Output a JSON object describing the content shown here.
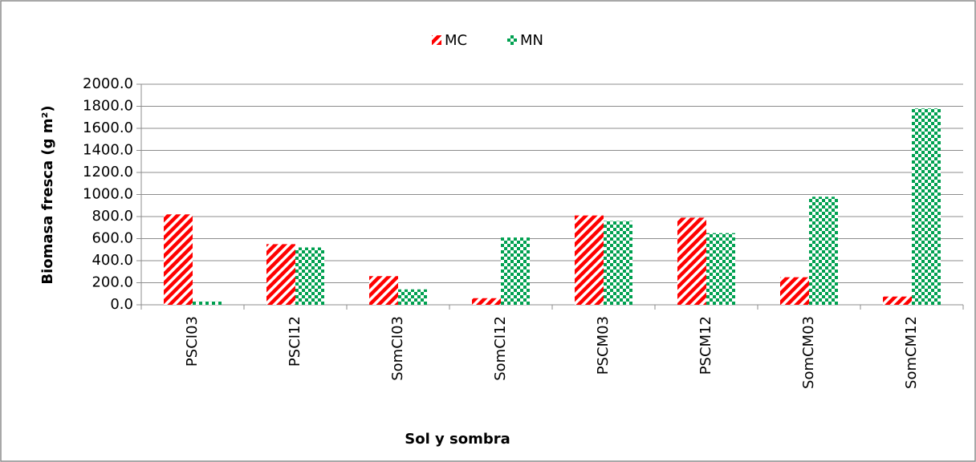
{
  "chart_data": {
    "type": "bar",
    "y_label": "Biomasa fresca (g m²)",
    "x_label": "Sol y sombra",
    "categories": [
      "PSCI03",
      "PSCI12",
      "SomCI03",
      "SomCI12",
      "PSCM03",
      "PSCM12",
      "SomCM03",
      "SomCM12"
    ],
    "series": [
      {
        "name": "MC",
        "color": "#ff0000",
        "pattern": "stripes",
        "values": [
          820,
          550,
          260,
          60,
          810,
          790,
          250,
          75
        ]
      },
      {
        "name": "MN",
        "color": "#00a050",
        "pattern": "checker",
        "values": [
          30,
          520,
          140,
          610,
          760,
          650,
          980,
          1780
        ]
      }
    ],
    "ylim": [
      0,
      2000
    ],
    "yticks": [
      {
        "value": 0,
        "label": "0.0"
      },
      {
        "value": 200,
        "label": "200.0"
      },
      {
        "value": 400,
        "label": "400.0"
      },
      {
        "value": 600,
        "label": "600.0"
      },
      {
        "value": 800,
        "label": "800.0"
      },
      {
        "value": 1000,
        "label": "1000.0"
      },
      {
        "value": 1200,
        "label": "1200.0"
      },
      {
        "value": 1400,
        "label": "1400.0"
      },
      {
        "value": 1600,
        "label": "1600.0"
      },
      {
        "value": 1800,
        "label": "1800.0"
      },
      {
        "value": 2000,
        "label": "2000.0"
      }
    ],
    "grid": true,
    "legend": "top"
  }
}
